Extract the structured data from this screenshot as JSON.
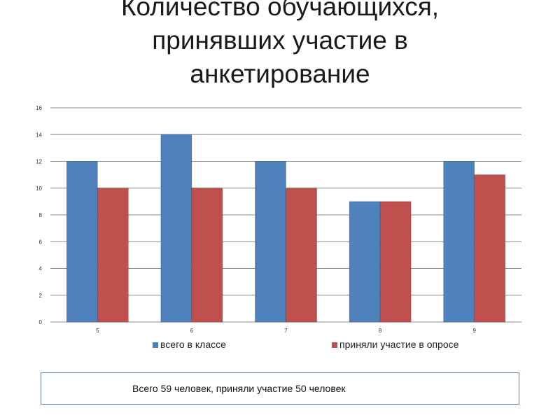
{
  "slide": {
    "title_lines": [
      "Количество обучающихся,",
      "принявших участие в",
      "анкетирование"
    ],
    "note": "Всего 59 человек, приняли участие 50 человек"
  },
  "colors": {
    "series_blue": "#4f81bd",
    "series_red": "#c0504d",
    "gridline": "#8c8c8c",
    "note_border": "#5b7fb3"
  },
  "chart_data": {
    "type": "bar",
    "categories": [
      "5",
      "6",
      "7",
      "8",
      "9"
    ],
    "series": [
      {
        "name": "всего в классе",
        "values": [
          12,
          14,
          12,
          9,
          12
        ]
      },
      {
        "name": "приняли участие в опросе",
        "values": [
          10,
          10,
          10,
          9,
          11
        ]
      }
    ],
    "yticks": [
      0,
      2,
      4,
      6,
      8,
      10,
      12,
      14,
      16
    ],
    "ylim": [
      0,
      16
    ],
    "grid": true,
    "legend_position": "bottom"
  }
}
